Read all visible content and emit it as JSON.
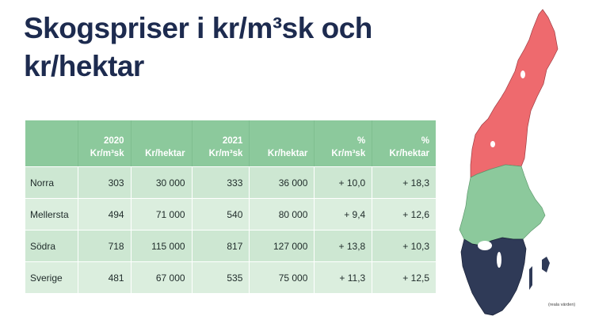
{
  "title": {
    "line1": "Skogspriser i kr/m³sk och",
    "line2": "kr/hektar"
  },
  "table": {
    "headers": [
      {
        "top": "",
        "bottom": ""
      },
      {
        "top": "2020",
        "bottom": "Kr/m³sk"
      },
      {
        "top": "",
        "bottom": "Kr/hektar"
      },
      {
        "top": "2021",
        "bottom": "Kr/m³sk"
      },
      {
        "top": "",
        "bottom": "Kr/hektar"
      },
      {
        "top": "%",
        "bottom": "Kr/m³sk"
      },
      {
        "top": "%",
        "bottom": "Kr/hektar"
      }
    ],
    "rows": [
      {
        "region": "Norra",
        "m3_2020": "303",
        "ha_2020": "30 000",
        "m3_2021": "333",
        "ha_2021": "36 000",
        "pct_m3": "+ 10,0",
        "pct_ha": "+ 18,3"
      },
      {
        "region": "Mellersta",
        "m3_2020": "494",
        "ha_2020": "71 000",
        "m3_2021": "540",
        "ha_2021": "80 000",
        "pct_m3": "+ 9,4",
        "pct_ha": "+ 12,6"
      },
      {
        "region": "Södra",
        "m3_2020": "718",
        "ha_2020": "115 000",
        "m3_2021": "817",
        "ha_2021": "127 000",
        "pct_m3": "+ 13,8",
        "pct_ha": "+ 10,3"
      },
      {
        "region": "Sverige",
        "m3_2020": "481",
        "ha_2020": "67 000",
        "m3_2021": "535",
        "ha_2021": "75 000",
        "pct_m3": "+ 11,3",
        "pct_ha": "+ 12,5"
      }
    ]
  },
  "map": {
    "colors": {
      "norra": "#ee6a6e",
      "mellersta": "#8cc99c",
      "sodra": "#2f3a57"
    }
  },
  "note": "(reala värden)"
}
